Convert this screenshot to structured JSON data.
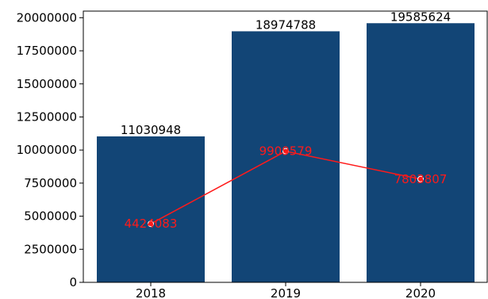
{
  "chart_data": {
    "type": "bar",
    "categories": [
      "2018",
      "2019",
      "2020"
    ],
    "series": [
      {
        "type": "bar",
        "values": [
          11030948,
          18974788,
          19585624
        ],
        "labels": [
          "11030948",
          "18974788",
          "19585624"
        ],
        "color": "#124576"
      },
      {
        "type": "line",
        "values": [
          4424083,
          9909579,
          7803807
        ],
        "labels": [
          "4424083",
          "9909579",
          "7803807"
        ],
        "color": "#ff1a1a"
      }
    ],
    "y_ticks": [
      0,
      2500000,
      5000000,
      7500000,
      10000000,
      12500000,
      15000000,
      17500000,
      20000000
    ],
    "y_tick_labels": [
      "0",
      "2500000",
      "5000000",
      "7500000",
      "10000000",
      "12500000",
      "15000000",
      "17500000",
      "20000000"
    ],
    "ylim": [
      0,
      20500000
    ],
    "title": "",
    "xlabel": "",
    "ylabel": "",
    "grid": false
  }
}
